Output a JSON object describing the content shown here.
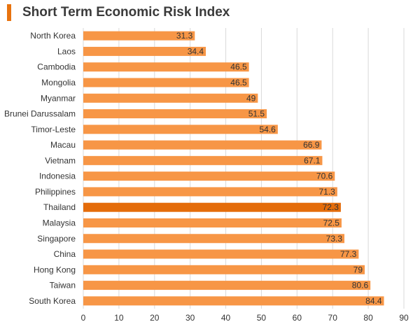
{
  "title": "Short Term Economic Risk Index",
  "colors": {
    "accent": "#e8730f",
    "bar": "#f79646",
    "highlight": "#e46c0a",
    "grid": "#d9d9d9",
    "text": "#333333"
  },
  "chart_data": {
    "type": "bar",
    "orientation": "horizontal",
    "title": "Short Term Economic Risk Index",
    "xlabel": "",
    "ylabel": "",
    "xlim": [
      0,
      90
    ],
    "x_ticks": [
      0,
      10,
      20,
      30,
      40,
      50,
      60,
      70,
      80,
      90
    ],
    "grid": true,
    "highlight": "Thailand",
    "categories": [
      "North Korea",
      "Laos",
      "Cambodia",
      "Mongolia",
      "Myanmar",
      "Brunei Darussalam",
      "Timor-Leste",
      "Macau",
      "Vietnam",
      "Indonesia",
      "Philippines",
      "Thailand",
      "Malaysia",
      "Singapore",
      "China",
      "Hong Kong",
      "Taiwan",
      "South Korea"
    ],
    "values": [
      31.3,
      34.4,
      46.5,
      46.5,
      49,
      51.5,
      54.6,
      66.9,
      67.1,
      70.6,
      71.3,
      72.3,
      72.5,
      73.3,
      77.3,
      79,
      80.6,
      84.4
    ]
  }
}
